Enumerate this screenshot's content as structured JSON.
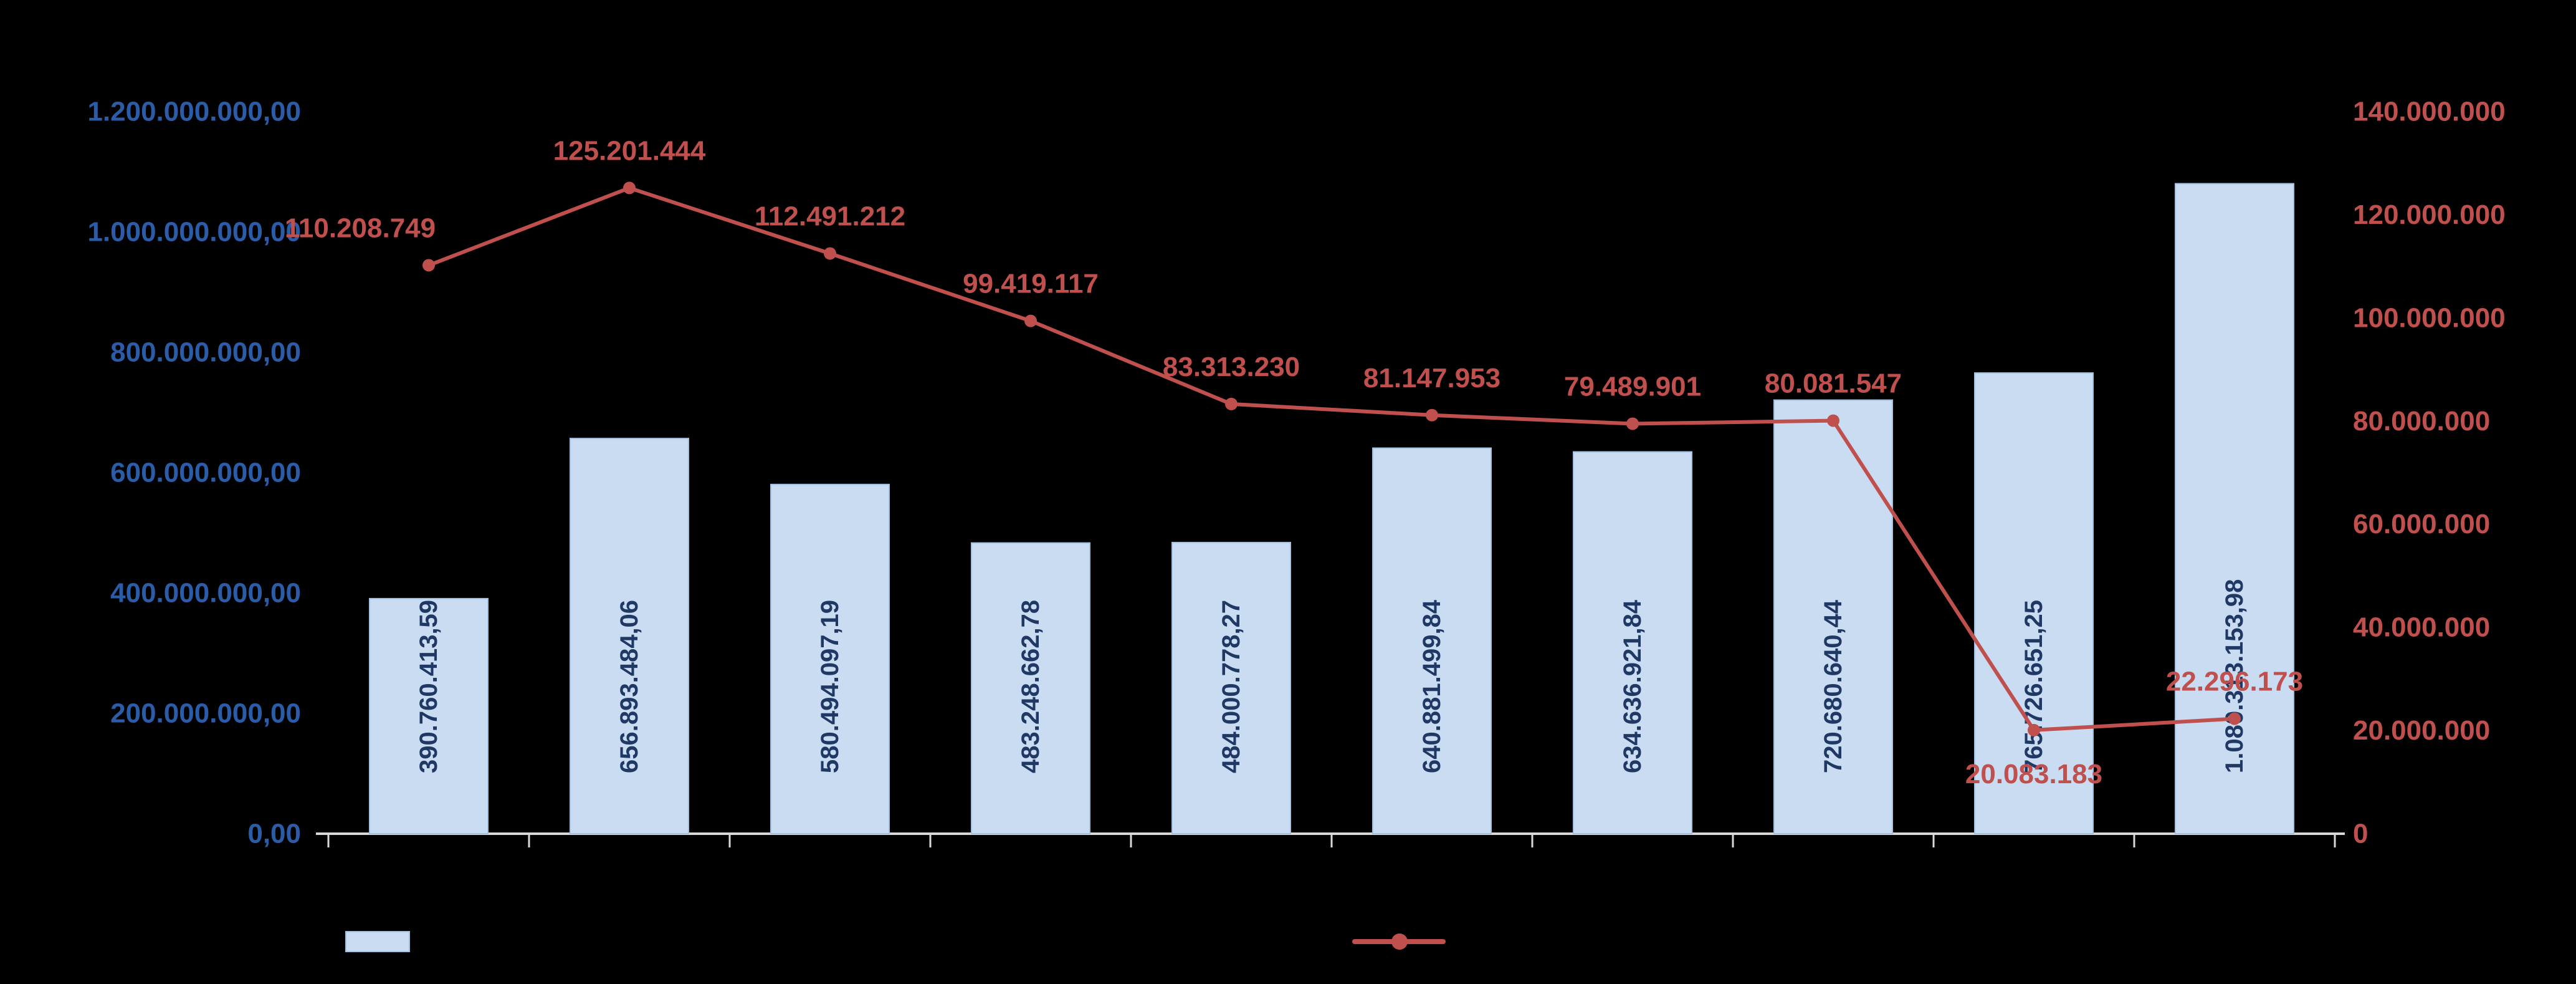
{
  "chart_data": {
    "type": "combo-bar-line",
    "title": "",
    "categories": [
      "",
      "",
      "",
      "",
      "",
      "",
      "",
      "",
      "",
      ""
    ],
    "series": [
      {
        "name": "",
        "type": "bar",
        "axis": "left",
        "values": [
          390760413.59,
          656893484.06,
          580494097.19,
          483248662.78,
          484000778.27,
          640881499.84,
          634636921.84,
          720680640.44,
          765726651.25,
          1080313153.98
        ],
        "labels": [
          "390.760.413,59",
          "656.893.484,06",
          "580.494.097,19",
          "483.248.662,78",
          "484.000.778,27",
          "640.881.499,84",
          "634.636.921,84",
          "720.680.640,44",
          "765.726.651,25",
          "1.080.313.153,98"
        ]
      },
      {
        "name": "",
        "type": "line",
        "axis": "right",
        "values": [
          110208749,
          125201444,
          112491212,
          99419117,
          83313230,
          81147953,
          79489901,
          80081547,
          20083183,
          22296173
        ],
        "labels": [
          "110.208.749",
          "125.201.444",
          "112.491.212",
          "99.419.117",
          "83.313.230",
          "81.147.953",
          "79.489.901",
          "80.081.547",
          "20.083.183",
          "22.296.173"
        ]
      }
    ],
    "left_axis": {
      "min": 0,
      "max": 1200000000,
      "step": 200000000,
      "tick_labels": [
        "1.200.000.000,00",
        "1.000.000.000,00",
        "800.000.000,00",
        "600.000.000,00",
        "400.000.000,00",
        "200.000.000,00",
        "0,00"
      ]
    },
    "right_axis": {
      "min": 0,
      "max": 140000000,
      "step": 20000000,
      "tick_labels": [
        "140.000.000",
        "120.000.000",
        "100.000.000",
        "80.000.000",
        "60.000.000",
        "40.000.000",
        "20.000.000",
        "0"
      ]
    },
    "legend": [
      {
        "label": "",
        "swatch": "bar"
      },
      {
        "label": "",
        "swatch": "line"
      }
    ],
    "colors": {
      "background": "#000000",
      "bar_fill": "#C9DCF2",
      "bar_border": "#A3C1E4",
      "bar_label": "#1F3864",
      "left_axis_text": "#2A5CA8",
      "line": "#C0504D",
      "right_axis_text": "#C0504D",
      "axis_line": "#D9D9D9",
      "category_text": "#000000",
      "title_text": "#000000"
    },
    "grid": false,
    "legend_position": "bottom"
  }
}
